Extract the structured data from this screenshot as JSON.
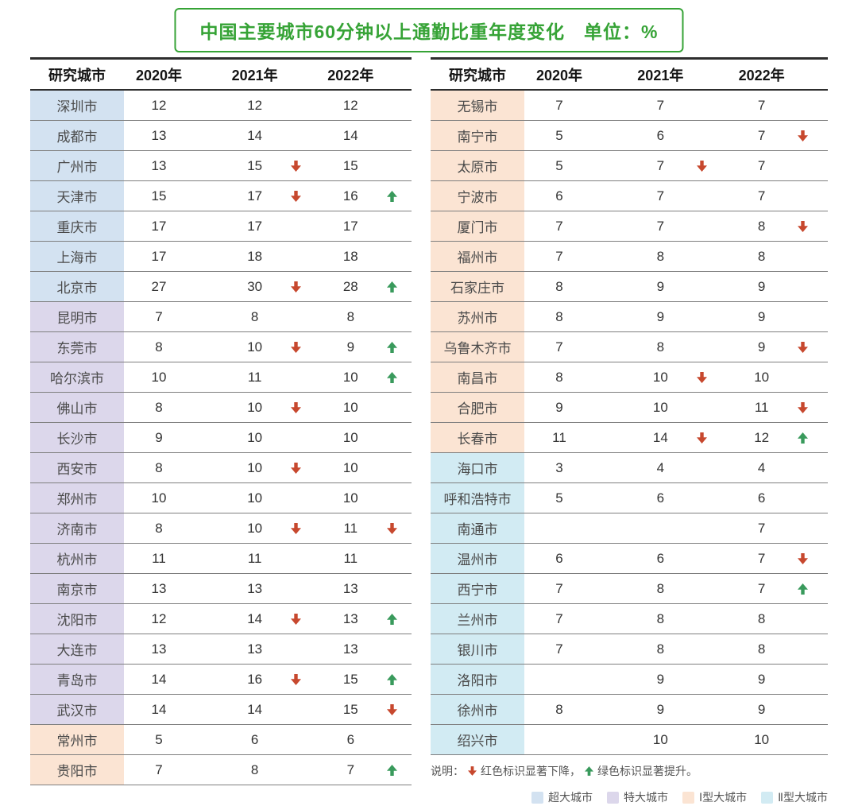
{
  "chart_data": {
    "type": "table",
    "title": "中国主要城市60分钟以上通勤比重年度变化　单位：%",
    "columns": [
      "研究城市",
      "2020年",
      "2021年",
      "2022年"
    ],
    "arrow_colors": {
      "down": "#c7482e",
      "up": "#399a5c"
    },
    "city_type_colors": {
      "super": "#d3e2f1",
      "mega": "#dcd7eb",
      "type1": "#fbe4d3",
      "type2": "#d2ebf3"
    },
    "tables": [
      {
        "name": "left",
        "rows": [
          {
            "city": "深圳市",
            "type": "super",
            "values": [
              [
                "12",
                ""
              ],
              [
                "12",
                ""
              ],
              [
                "12",
                ""
              ]
            ]
          },
          {
            "city": "成都市",
            "type": "super",
            "values": [
              [
                "13",
                ""
              ],
              [
                "14",
                ""
              ],
              [
                "14",
                ""
              ]
            ]
          },
          {
            "city": "广州市",
            "type": "super",
            "values": [
              [
                "13",
                ""
              ],
              [
                "15",
                "down"
              ],
              [
                "15",
                ""
              ]
            ]
          },
          {
            "city": "天津市",
            "type": "super",
            "values": [
              [
                "15",
                ""
              ],
              [
                "17",
                "down"
              ],
              [
                "16",
                "up"
              ]
            ]
          },
          {
            "city": "重庆市",
            "type": "super",
            "values": [
              [
                "17",
                ""
              ],
              [
                "17",
                ""
              ],
              [
                "17",
                ""
              ]
            ]
          },
          {
            "city": "上海市",
            "type": "super",
            "values": [
              [
                "17",
                ""
              ],
              [
                "18",
                ""
              ],
              [
                "18",
                ""
              ]
            ]
          },
          {
            "city": "北京市",
            "type": "super",
            "values": [
              [
                "27",
                ""
              ],
              [
                "30",
                "down"
              ],
              [
                "28",
                "up"
              ]
            ]
          },
          {
            "city": "昆明市",
            "type": "mega",
            "values": [
              [
                "7",
                ""
              ],
              [
                "8",
                ""
              ],
              [
                "8",
                ""
              ]
            ]
          },
          {
            "city": "东莞市",
            "type": "mega",
            "values": [
              [
                "8",
                ""
              ],
              [
                "10",
                "down"
              ],
              [
                "9",
                "up"
              ]
            ]
          },
          {
            "city": "哈尔滨市",
            "type": "mega",
            "values": [
              [
                "10",
                ""
              ],
              [
                "11",
                ""
              ],
              [
                "10",
                "up"
              ]
            ]
          },
          {
            "city": "佛山市",
            "type": "mega",
            "values": [
              [
                "8",
                ""
              ],
              [
                "10",
                "down"
              ],
              [
                "10",
                ""
              ]
            ]
          },
          {
            "city": "长沙市",
            "type": "mega",
            "values": [
              [
                "9",
                ""
              ],
              [
                "10",
                ""
              ],
              [
                "10",
                ""
              ]
            ]
          },
          {
            "city": "西安市",
            "type": "mega",
            "values": [
              [
                "8",
                ""
              ],
              [
                "10",
                "down"
              ],
              [
                "10",
                ""
              ]
            ]
          },
          {
            "city": "郑州市",
            "type": "mega",
            "values": [
              [
                "10",
                ""
              ],
              [
                "10",
                ""
              ],
              [
                "10",
                ""
              ]
            ]
          },
          {
            "city": "济南市",
            "type": "mega",
            "values": [
              [
                "8",
                ""
              ],
              [
                "10",
                "down"
              ],
              [
                "11",
                "down"
              ]
            ]
          },
          {
            "city": "杭州市",
            "type": "mega",
            "values": [
              [
                "11",
                ""
              ],
              [
                "11",
                ""
              ],
              [
                "11",
                ""
              ]
            ]
          },
          {
            "city": "南京市",
            "type": "mega",
            "values": [
              [
                "13",
                ""
              ],
              [
                "13",
                ""
              ],
              [
                "13",
                ""
              ]
            ]
          },
          {
            "city": "沈阳市",
            "type": "mega",
            "values": [
              [
                "12",
                ""
              ],
              [
                "14",
                "down"
              ],
              [
                "13",
                "up"
              ]
            ]
          },
          {
            "city": "大连市",
            "type": "mega",
            "values": [
              [
                "13",
                ""
              ],
              [
                "13",
                ""
              ],
              [
                "13",
                ""
              ]
            ]
          },
          {
            "city": "青岛市",
            "type": "mega",
            "values": [
              [
                "14",
                ""
              ],
              [
                "16",
                "down"
              ],
              [
                "15",
                "up"
              ]
            ]
          },
          {
            "city": "武汉市",
            "type": "mega",
            "values": [
              [
                "14",
                ""
              ],
              [
                "14",
                ""
              ],
              [
                "15",
                "down"
              ]
            ]
          },
          {
            "city": "常州市",
            "type": "type1",
            "values": [
              [
                "5",
                ""
              ],
              [
                "6",
                ""
              ],
              [
                "6",
                ""
              ]
            ]
          },
          {
            "city": "贵阳市",
            "type": "type1",
            "values": [
              [
                "7",
                ""
              ],
              [
                "8",
                ""
              ],
              [
                "7",
                "up"
              ]
            ]
          }
        ]
      },
      {
        "name": "right",
        "rows": [
          {
            "city": "无锡市",
            "type": "type1",
            "values": [
              [
                "7",
                ""
              ],
              [
                "7",
                ""
              ],
              [
                "7",
                ""
              ]
            ]
          },
          {
            "city": "南宁市",
            "type": "type1",
            "values": [
              [
                "5",
                ""
              ],
              [
                "6",
                ""
              ],
              [
                "7",
                "down"
              ]
            ]
          },
          {
            "city": "太原市",
            "type": "type1",
            "values": [
              [
                "5",
                ""
              ],
              [
                "7",
                "down"
              ],
              [
                "7",
                ""
              ]
            ]
          },
          {
            "city": "宁波市",
            "type": "type1",
            "values": [
              [
                "6",
                ""
              ],
              [
                "7",
                ""
              ],
              [
                "7",
                ""
              ]
            ]
          },
          {
            "city": "厦门市",
            "type": "type1",
            "values": [
              [
                "7",
                ""
              ],
              [
                "7",
                ""
              ],
              [
                "8",
                "down"
              ]
            ]
          },
          {
            "city": "福州市",
            "type": "type1",
            "values": [
              [
                "7",
                ""
              ],
              [
                "8",
                ""
              ],
              [
                "8",
                ""
              ]
            ]
          },
          {
            "city": "石家庄市",
            "type": "type1",
            "values": [
              [
                "8",
                ""
              ],
              [
                "9",
                ""
              ],
              [
                "9",
                ""
              ]
            ]
          },
          {
            "city": "苏州市",
            "type": "type1",
            "values": [
              [
                "8",
                ""
              ],
              [
                "9",
                ""
              ],
              [
                "9",
                ""
              ]
            ]
          },
          {
            "city": "乌鲁木齐市",
            "type": "type1",
            "values": [
              [
                "7",
                ""
              ],
              [
                "8",
                ""
              ],
              [
                "9",
                "down"
              ]
            ]
          },
          {
            "city": "南昌市",
            "type": "type1",
            "values": [
              [
                "8",
                ""
              ],
              [
                "10",
                "down"
              ],
              [
                "10",
                ""
              ]
            ]
          },
          {
            "city": "合肥市",
            "type": "type1",
            "values": [
              [
                "9",
                ""
              ],
              [
                "10",
                ""
              ],
              [
                "11",
                "down"
              ]
            ]
          },
          {
            "city": "长春市",
            "type": "type1",
            "values": [
              [
                "11",
                ""
              ],
              [
                "14",
                "down"
              ],
              [
                "12",
                "up"
              ]
            ]
          },
          {
            "city": "海口市",
            "type": "type2",
            "values": [
              [
                "3",
                ""
              ],
              [
                "4",
                ""
              ],
              [
                "4",
                ""
              ]
            ]
          },
          {
            "city": "呼和浩特市",
            "type": "type2",
            "values": [
              [
                "5",
                ""
              ],
              [
                "6",
                ""
              ],
              [
                "6",
                ""
              ]
            ]
          },
          {
            "city": "南通市",
            "type": "type2",
            "values": [
              [
                "",
                ""
              ],
              [
                "",
                ""
              ],
              [
                "7",
                ""
              ]
            ]
          },
          {
            "city": "温州市",
            "type": "type2",
            "values": [
              [
                "6",
                ""
              ],
              [
                "6",
                ""
              ],
              [
                "7",
                "down"
              ]
            ]
          },
          {
            "city": "西宁市",
            "type": "type2",
            "values": [
              [
                "7",
                ""
              ],
              [
                "8",
                ""
              ],
              [
                "7",
                "up"
              ]
            ]
          },
          {
            "city": "兰州市",
            "type": "type2",
            "values": [
              [
                "7",
                ""
              ],
              [
                "8",
                ""
              ],
              [
                "8",
                ""
              ]
            ]
          },
          {
            "city": "银川市",
            "type": "type2",
            "values": [
              [
                "7",
                ""
              ],
              [
                "8",
                ""
              ],
              [
                "8",
                ""
              ]
            ]
          },
          {
            "city": "洛阳市",
            "type": "type2",
            "values": [
              [
                "",
                ""
              ],
              [
                "9",
                ""
              ],
              [
                "9",
                ""
              ]
            ]
          },
          {
            "city": "徐州市",
            "type": "type2",
            "values": [
              [
                "8",
                ""
              ],
              [
                "9",
                ""
              ],
              [
                "9",
                ""
              ]
            ]
          },
          {
            "city": "绍兴市",
            "type": "type2",
            "values": [
              [
                "",
                ""
              ],
              [
                "10",
                ""
              ],
              [
                "10",
                ""
              ]
            ]
          }
        ]
      }
    ]
  },
  "note": {
    "prefix": "说明：",
    "down_text": "红色标识显著下降，",
    "up_text": "绿色标识显著提升。"
  },
  "legend": [
    {
      "label": "超大城市",
      "type": "super"
    },
    {
      "label": "特大城市",
      "type": "mega"
    },
    {
      "label": "Ⅰ型大城市",
      "type": "type1"
    },
    {
      "label": "Ⅱ型大城市",
      "type": "type2"
    }
  ]
}
